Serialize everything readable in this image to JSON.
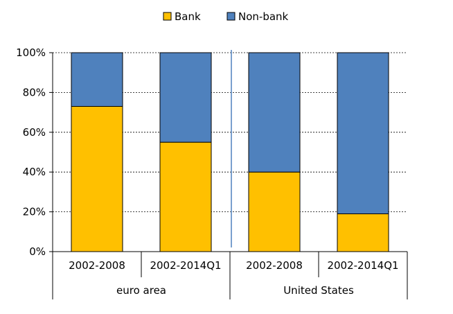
{
  "chart_data": {
    "type": "bar",
    "stacked": true,
    "percent_stacked": true,
    "categories": [
      "2002-2008",
      "2002-2014Q1",
      "2002-2008",
      "2002-2014Q1"
    ],
    "groups": [
      {
        "label": "euro area",
        "categories": [
          0,
          1
        ]
      },
      {
        "label": "United States",
        "categories": [
          2,
          3
        ]
      }
    ],
    "series": [
      {
        "name": "Bank",
        "color": "#FFC000",
        "values": [
          73,
          55,
          40,
          19
        ]
      },
      {
        "name": "Non-bank",
        "color": "#4F81BD",
        "values": [
          27,
          45,
          60,
          81
        ]
      }
    ],
    "yticks": [
      "0%",
      "20%",
      "40%",
      "60%",
      "80%",
      "100%"
    ],
    "ylim": [
      0,
      100
    ],
    "grid": true,
    "legend": "top",
    "title": "",
    "xlabel": "",
    "ylabel": ""
  }
}
